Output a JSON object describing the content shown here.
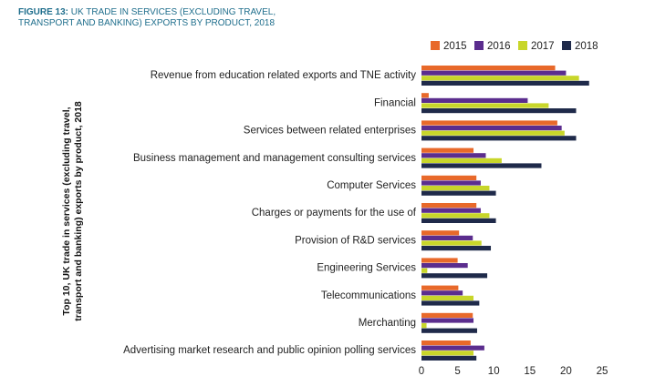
{
  "figure": {
    "label": "FIGURE 13:",
    "title": "UK TRADE IN SERVICES (EXCLUDING TRAVEL, TRANSPORT AND BANKING) EXPORTS BY PRODUCT, 2018"
  },
  "chart_data": {
    "type": "bar",
    "orientation": "horizontal",
    "ylabel": "Top 10, UK  trade in services (excluding travel, transport and banking) exports by product, 2018",
    "ylabel_lines": [
      "Top 10, UK  trade in services (excluding travel,",
      "transport and banking) exports by product, 2018"
    ],
    "xlim": [
      0,
      25
    ],
    "xticks": [
      0,
      5,
      10,
      15,
      20,
      25
    ],
    "legend_position": "top-right",
    "categories": [
      "Revenue from education related exports and TNE activity",
      "Financial",
      "Services between related enterprises",
      "Business management and management consulting services",
      "Computer Services",
      "Charges or payments for the use of",
      "Provision of R&D services",
      "Engineering Services",
      "Telecommunications",
      "Merchanting",
      "Advertising market research and public opinion polling services"
    ],
    "series": [
      {
        "name": "2015",
        "color": "#e8692a",
        "values": [
          18.5,
          1.0,
          18.8,
          7.2,
          7.6,
          7.6,
          5.2,
          5.0,
          5.1,
          7.1,
          6.8
        ]
      },
      {
        "name": "2016",
        "color": "#5b2d8e",
        "values": [
          20.0,
          14.7,
          19.4,
          8.9,
          8.2,
          8.2,
          7.1,
          6.4,
          5.7,
          7.2,
          8.7
        ]
      },
      {
        "name": "2017",
        "color": "#c8d62a",
        "values": [
          21.8,
          17.6,
          19.8,
          11.1,
          9.4,
          9.4,
          8.3,
          0.8,
          7.2,
          0.7,
          7.2
        ]
      },
      {
        "name": "2018",
        "color": "#1f2a4a",
        "values": [
          23.2,
          21.4,
          21.4,
          16.6,
          10.3,
          10.3,
          9.6,
          9.1,
          8.0,
          7.7,
          7.6
        ]
      }
    ]
  }
}
